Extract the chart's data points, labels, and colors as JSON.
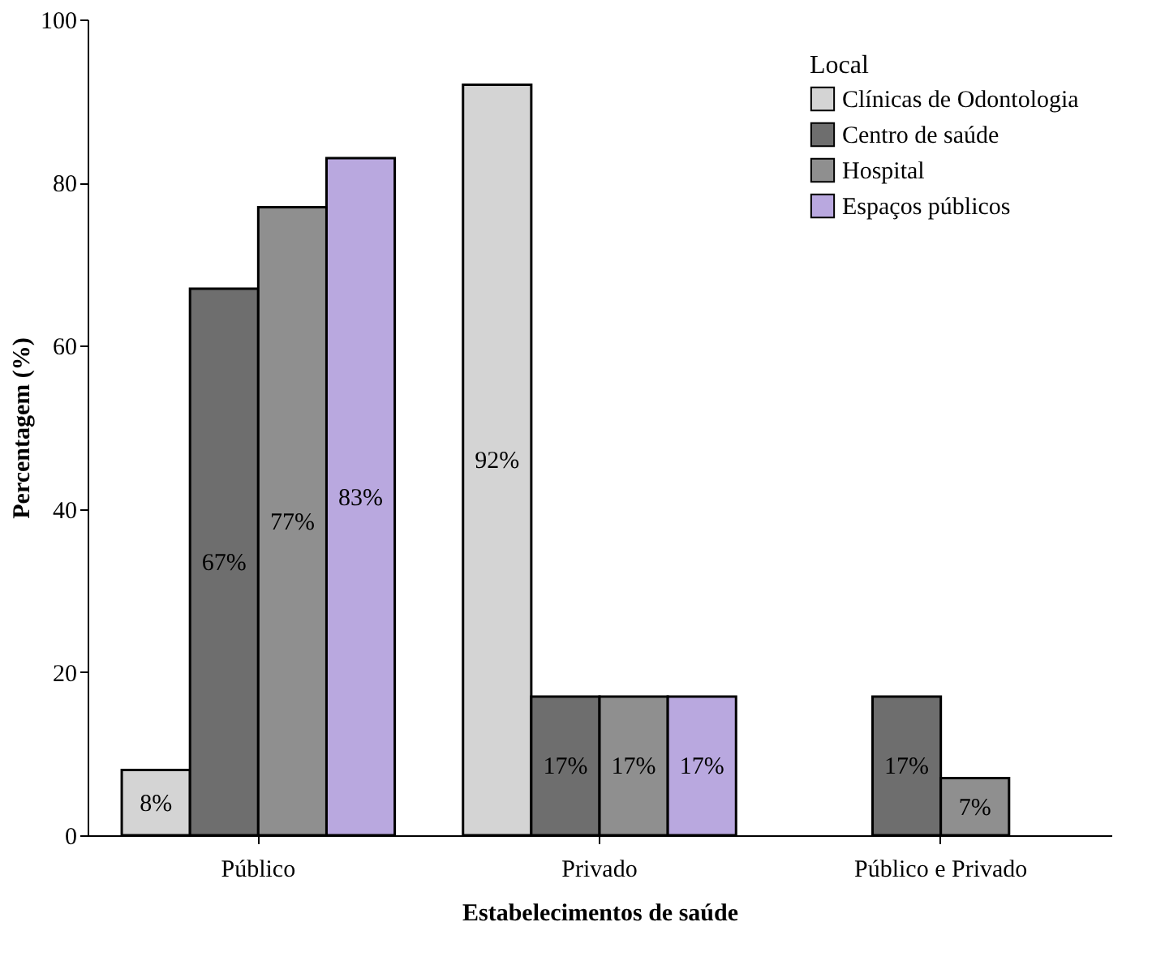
{
  "chart_data": {
    "type": "bar",
    "xlabel": "Estabelecimentos de saúde",
    "ylabel": "Percentagem (%)",
    "legend_title": "Local",
    "legend": "top right",
    "categories": [
      "Público",
      "Privado",
      "Público e Privado"
    ],
    "ylim": [
      0,
      100
    ],
    "yticks": [
      0,
      20,
      40,
      60,
      80,
      100
    ],
    "grid": false,
    "series": [
      {
        "name": "Clínicas de Odontologia",
        "color": "#d4d4d4",
        "values": [
          8,
          92,
          0
        ],
        "value_labels": [
          "8%",
          "92%",
          null
        ]
      },
      {
        "name": "Centro de saúde",
        "color": "#6e6e6e",
        "values": [
          67,
          17,
          17
        ],
        "value_labels": [
          "67%",
          "17%",
          "17%"
        ]
      },
      {
        "name": "Hospital",
        "color": "#8f8f8f",
        "values": [
          77,
          17,
          7
        ],
        "value_labels": [
          "77%",
          "17%",
          "7%"
        ]
      },
      {
        "name": "Espaços públicos",
        "color": "#b9a8df",
        "values": [
          83,
          17,
          0
        ],
        "value_labels": [
          "83%",
          "17%",
          null
        ]
      }
    ]
  }
}
